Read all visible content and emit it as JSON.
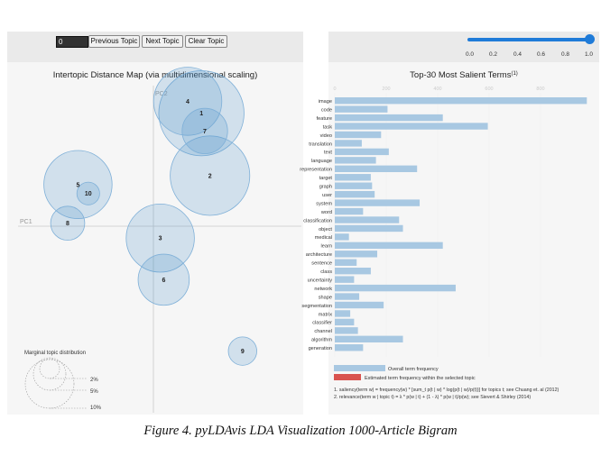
{
  "controls": {
    "topic_value": "0",
    "prev_label": "Previous Topic",
    "next_label": "Next Topic",
    "clear_label": "Clear Topic",
    "slider_ticks": [
      "0.0",
      "0.2",
      "0.4",
      "0.6",
      "0.8",
      "1.0"
    ]
  },
  "figure_caption": "Figure 4. pyLDAvis LDA Visualization 1000-Article Bigram",
  "chart_data": [
    {
      "type": "scatter",
      "title": "Intertopic Distance Map (via multidimensional scaling)",
      "xlabel": "PC1",
      "ylabel": "PC2",
      "topics": [
        {
          "id": "1",
          "x": 0.28,
          "y": 0.38,
          "size": 7.5
        },
        {
          "id": "2",
          "x": 0.33,
          "y": 0.17,
          "size": 7.0
        },
        {
          "id": "3",
          "x": 0.04,
          "y": -0.04,
          "size": 6.0
        },
        {
          "id": "4",
          "x": 0.2,
          "y": 0.42,
          "size": 6.0
        },
        {
          "id": "5",
          "x": -0.44,
          "y": 0.14,
          "size": 6.0
        },
        {
          "id": "6",
          "x": 0.06,
          "y": -0.18,
          "size": 4.5
        },
        {
          "id": "7",
          "x": 0.3,
          "y": 0.32,
          "size": 4.0
        },
        {
          "id": "8",
          "x": -0.5,
          "y": 0.01,
          "size": 3.0
        },
        {
          "id": "9",
          "x": 0.52,
          "y": -0.42,
          "size": 2.5
        },
        {
          "id": "10",
          "x": -0.38,
          "y": 0.11,
          "size": 2.0
        }
      ],
      "legend": {
        "title": "Marginal topic distribution",
        "items": [
          "2%",
          "5%",
          "10%"
        ]
      }
    },
    {
      "type": "bar",
      "title": "Top-30 Most Salient Terms",
      "title_superscript": "(1)",
      "xlim": [
        0,
        1000
      ],
      "xticks": [
        "0",
        "200",
        "400",
        "600",
        "800"
      ],
      "categories": [
        "image",
        "code",
        "feature",
        "task",
        "video",
        "translation",
        "text",
        "language",
        "representation",
        "target",
        "graph",
        "user",
        "system",
        "word",
        "classification",
        "object",
        "medical",
        "learn",
        "architecture",
        "sentence",
        "class",
        "uncertainty",
        "network",
        "shape",
        "segmentation",
        "matrix",
        "classifier",
        "channel",
        "algorithm",
        "generation"
      ],
      "series": [
        {
          "name": "Overall term frequency",
          "color": "#a8c8e2",
          "values": [
            980,
            205,
            420,
            595,
            180,
            105,
            210,
            160,
            320,
            140,
            145,
            155,
            330,
            110,
            250,
            265,
            55,
            420,
            165,
            85,
            140,
            75,
            470,
            95,
            190,
            60,
            75,
            90,
            265,
            110
          ]
        }
      ],
      "legend": [
        {
          "label": "Overall term frequency",
          "color": "#a8c8e2"
        },
        {
          "label": "Estimated term frequency within the selected topic",
          "color": "#d9534f"
        }
      ],
      "footnotes": [
        "1. saliency(term w) = frequency(w) * [sum_t p(t | w) * log(p(t | w)/p(t))] for topics t; see Chuang et. al (2012)",
        "2. relevance(term w | topic t) = λ * p(w | t) + (1 - λ) * p(w | t)/p(w); see Sievert & Shirley (2014)"
      ]
    }
  ]
}
